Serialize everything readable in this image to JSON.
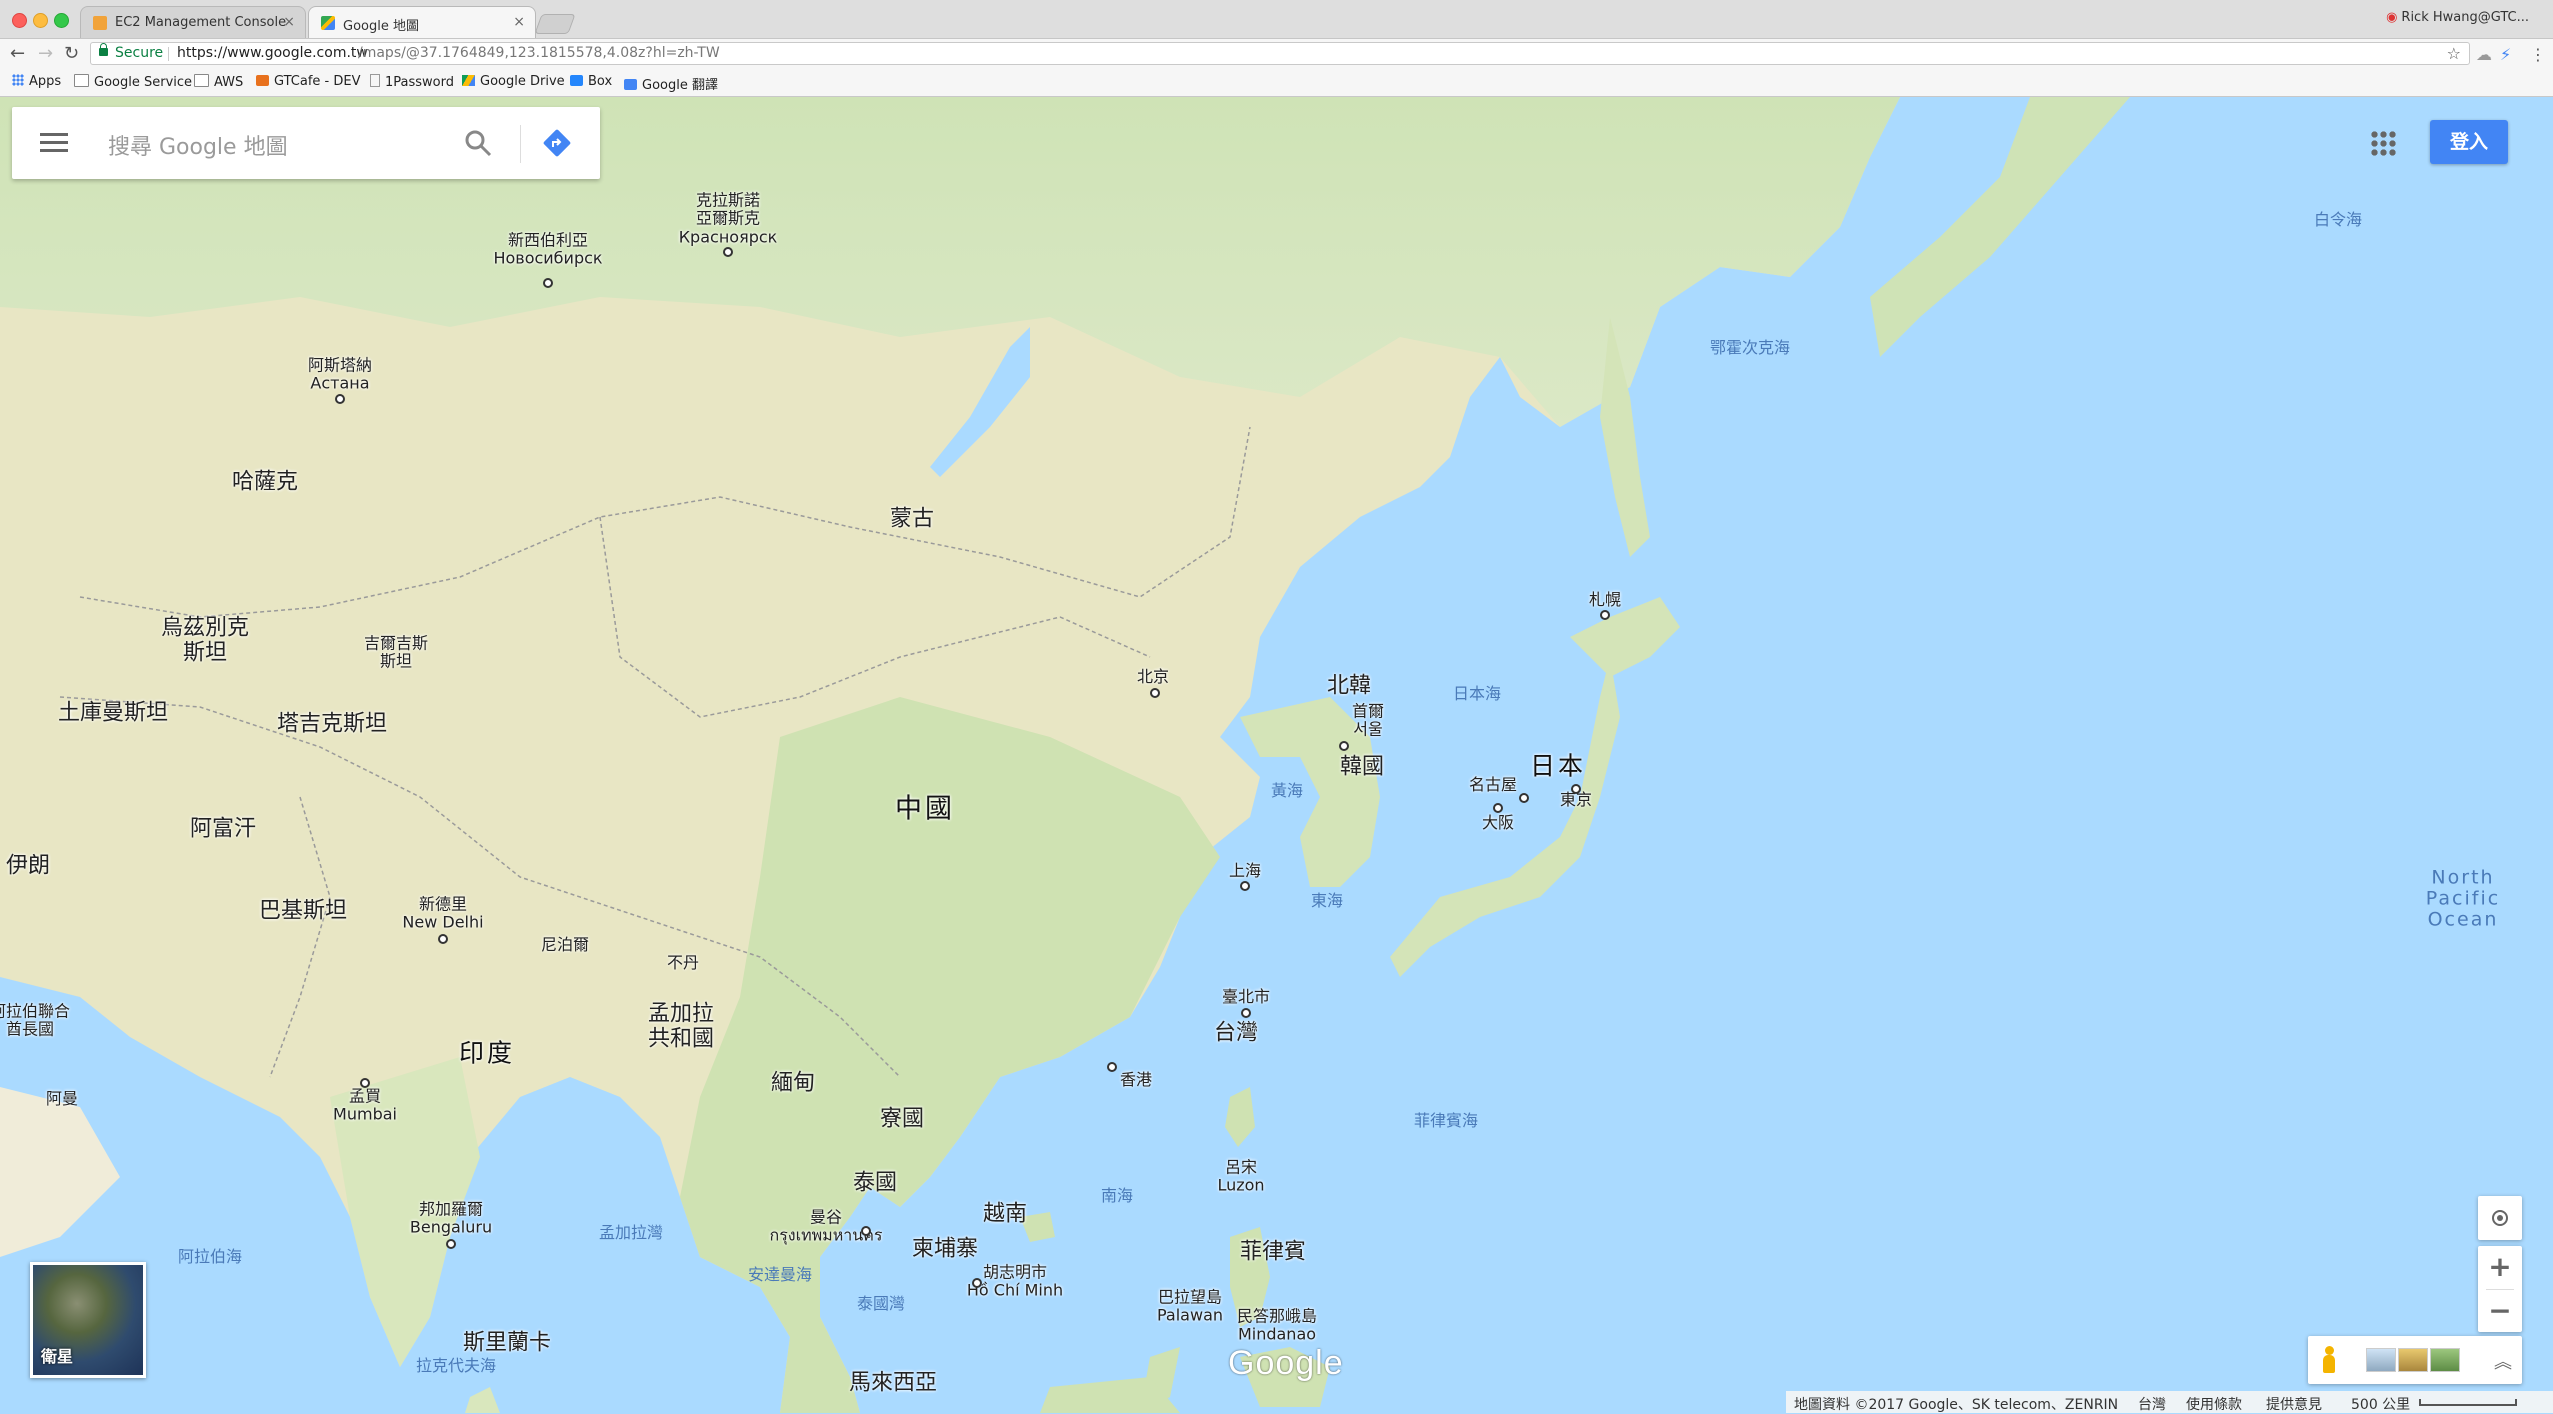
{
  "browser": {
    "tabs": [
      {
        "title": "EC2 Management Console",
        "close": "×"
      },
      {
        "title": "Google 地圖",
        "close": "×"
      }
    ],
    "user": "Rick Hwang@GTC...",
    "secure_label": "Secure",
    "url_host": "https://www.google.com.tw",
    "url_path": "/maps/@37.1764849,123.1815578,4.08z?hl=zh-TW",
    "bookmarks": [
      "Apps",
      "Google Service",
      "AWS",
      "GTCafe - DEV",
      "1Password",
      "Google Drive",
      "Box",
      "Google 翻譯"
    ]
  },
  "search": {
    "placeholder": "搜尋 Google 地圖"
  },
  "signin_label": "登入",
  "satellite_label": "衛星",
  "logo": "Google",
  "footer": {
    "attribution": "地圖資料 ©2017 Google、SK telecom、ZENRIN",
    "region": "台灣",
    "terms": "使用條款",
    "feedback": "提供意見",
    "scale": "500 公里"
  },
  "map_labels": {
    "countries": [
      "蒙古",
      "哈薩克",
      "烏茲別克\n斯坦",
      "吉爾吉斯\n斯坦",
      "土庫曼斯坦",
      "塔吉克斯坦",
      "阿富汗",
      "伊朗",
      "巴基斯坦",
      "尼泊爾",
      "不丹",
      "孟加拉\n共和國",
      "印度",
      "緬甸",
      "寮國",
      "泰國",
      "越南",
      "柬埔寨",
      "北韓",
      "韓國",
      "日本",
      "台灣",
      "菲律賓",
      "斯里蘭卡",
      "馬來西亞",
      "阿拉伯聯合\n酋長國",
      "阿曼"
    ],
    "china": "中國",
    "cities": [
      "克拉斯諾\n亞爾斯克\nКрасноярск",
      "新西伯利亞\nНовосибирск",
      "阿斯塔納\nАстана",
      "北京",
      "首爾\n서울",
      "札幌",
      "名古屋",
      "大阪",
      "東京",
      "上海",
      "臺北市",
      "香港",
      "新德里\nNew Delhi",
      "孟買\nMumbai",
      "邦加羅爾\nBengaluru",
      "曼谷\nกรุงเทพมหานคร",
      "胡志明市\nHồ Chí Minh",
      "呂宋\nLuzon",
      "巴拉望島\nPalawan",
      "民答那峨島\nMindanao"
    ],
    "waters": [
      "鄂霍次克海",
      "白令海",
      "日本海",
      "黃海",
      "東海",
      "菲律賓海",
      "南海",
      "孟加拉灣",
      "安達曼海",
      "泰國灣",
      "阿拉伯海",
      "拉克代夫海"
    ],
    "ocean": "North\nPacific\nOcean"
  }
}
